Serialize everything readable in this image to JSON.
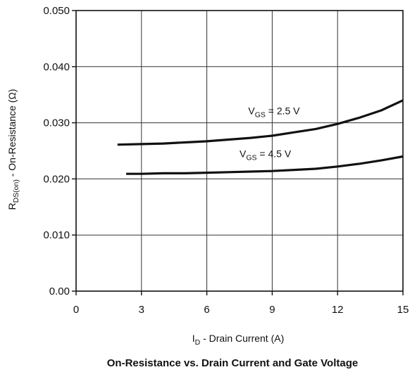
{
  "chart_data": {
    "type": "line",
    "title": "On-Resistance vs. Drain Current and Gate Voltage",
    "xlabel": {
      "main": "I",
      "sub": "D",
      "rest": " - Drain Current (A)"
    },
    "ylabel": {
      "main": "R",
      "sub": "DS(on)",
      "rest": " - On-Resistance (Ω)"
    },
    "xlim": [
      0,
      15
    ],
    "ylim": [
      0,
      0.05
    ],
    "x_ticks": [
      0,
      3,
      6,
      9,
      12,
      15
    ],
    "x_tick_labels": [
      "0",
      "3",
      "6",
      "9",
      "12",
      "15"
    ],
    "y_ticks": [
      0,
      0.01,
      0.02,
      0.03,
      0.04,
      0.05
    ],
    "y_tick_labels": [
      "0.00",
      "0.010",
      "0.020",
      "0.030",
      "0.040",
      "0.050"
    ],
    "grid": true,
    "series": [
      {
        "id": "vgs25",
        "x": [
          1.9,
          3.0,
          4.0,
          5.0,
          6.0,
          7.0,
          8.0,
          9.0,
          10.0,
          11.0,
          12.0,
          13.0,
          14.0,
          15.0
        ],
        "values": [
          0.0261,
          0.0262,
          0.0263,
          0.0265,
          0.0267,
          0.027,
          0.0273,
          0.0277,
          0.0283,
          0.0289,
          0.0298,
          0.0309,
          0.0322,
          0.034
        ],
        "color": "#111111"
      },
      {
        "id": "vgs45",
        "x": [
          2.3,
          3.0,
          4.0,
          5.0,
          6.0,
          7.0,
          8.0,
          9.0,
          10.0,
          11.0,
          12.0,
          13.0,
          14.0,
          15.0
        ],
        "values": [
          0.0209,
          0.0209,
          0.021,
          0.021,
          0.0211,
          0.0212,
          0.0213,
          0.0214,
          0.0216,
          0.0218,
          0.0222,
          0.0227,
          0.0233,
          0.024
        ],
        "color": "#111111"
      }
    ],
    "annotations": [
      {
        "id": "ann-vgs25",
        "pre": "V",
        "sub": "GS",
        "post": " =  2.5  V",
        "x": 7.9,
        "y": 0.0315
      },
      {
        "id": "ann-vgs45",
        "pre": "V",
        "sub": "GS",
        "post": " =  4.5  V",
        "x": 7.5,
        "y": 0.0239
      }
    ]
  }
}
